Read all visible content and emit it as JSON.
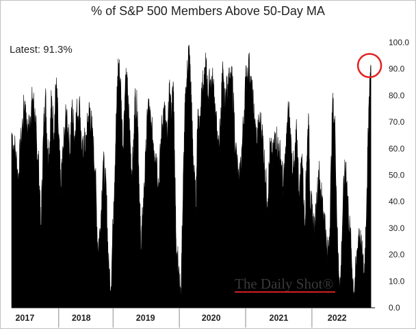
{
  "chart_data": {
    "type": "area",
    "title": "% of S&P 500 Members Above 50-Day MA",
    "annotation": "Latest:  91.3%",
    "latest_value": 91.3,
    "xlabel": "",
    "ylabel": "",
    "ylim": [
      0,
      100
    ],
    "y_ticks": [
      "0.0",
      "10.0",
      "20.0",
      "30.0",
      "40.0",
      "50.0",
      "60.0",
      "70.0",
      "80.0",
      "90.0",
      "100.0"
    ],
    "x_range": [
      2016.92,
      2022.38
    ],
    "year_labels": [
      {
        "label": "2017",
        "center": 2017.12
      },
      {
        "label": "2018",
        "center": 2017.97
      },
      {
        "label": "2019",
        "center": 2018.94
      },
      {
        "label": "2020",
        "center": 2019.93
      },
      {
        "label": "2021",
        "center": 2020.95
      },
      {
        "label": "2022",
        "center": 2021.83
      }
    ],
    "year_boundaries": [
      2017.63,
      2018.45,
      2019.45,
      2020.45,
      2021.45
    ],
    "series": [
      {
        "fill": "#000000",
        "x": [
          2016.92,
          2016.98,
          2017.02,
          2017.06,
          2017.12,
          2017.15,
          2017.2,
          2017.24,
          2017.28,
          2017.3,
          2017.33,
          2017.36,
          2017.4,
          2017.43,
          2017.46,
          2017.49,
          2017.52,
          2017.56,
          2017.59,
          2017.62,
          2017.66,
          2017.7,
          2017.75,
          2017.8,
          2017.83,
          2017.87,
          2017.9,
          2017.95,
          2017.98,
          2018.01,
          2018.04,
          2018.07,
          2018.1,
          2018.14,
          2018.18,
          2018.22,
          2018.26,
          2018.3,
          2018.35,
          2018.38,
          2018.42,
          2018.46,
          2018.5,
          2018.53,
          2018.56,
          2018.6,
          2018.64,
          2018.67,
          2018.7,
          2018.73,
          2018.76,
          2018.78,
          2018.82,
          2018.85,
          2018.87,
          2018.9,
          2018.94,
          2018.98,
          2019.02,
          2019.06,
          2019.1,
          2019.14,
          2019.18,
          2019.22,
          2019.27,
          2019.3,
          2019.33,
          2019.36,
          2019.38,
          2019.4,
          2019.43,
          2019.47,
          2019.5,
          2019.53,
          2019.56,
          2019.59,
          2019.62,
          2019.64,
          2019.67,
          2019.7,
          2019.73,
          2019.75,
          2019.79,
          2019.82,
          2019.85,
          2019.88,
          2019.92,
          2019.96,
          2020.0,
          2020.03,
          2020.07,
          2020.1,
          2020.13,
          2020.16,
          2020.19,
          2020.22,
          2020.25,
          2020.3,
          2020.35,
          2020.4,
          2020.45,
          2020.5,
          2020.53,
          2020.56,
          2020.58,
          2020.62,
          2020.66,
          2020.7,
          2020.74,
          2020.78,
          2020.82,
          2020.86,
          2020.9,
          2020.94,
          2020.98,
          2021.02,
          2021.06,
          2021.1,
          2021.14,
          2021.18,
          2021.22,
          2021.26,
          2021.3,
          2021.34,
          2021.37,
          2021.4,
          2021.42,
          2021.46,
          2021.5,
          2021.55,
          2021.6,
          2021.64,
          2021.68,
          2021.72,
          2021.76,
          2021.8,
          2021.84,
          2021.88,
          2021.92,
          2021.96,
          2022.0,
          2022.04,
          2022.08,
          2022.12,
          2022.16,
          2022.2,
          2022.24,
          2022.28,
          2022.31,
          2022.34
        ],
        "y": [
          66,
          58,
          48,
          63,
          78,
          65,
          72,
          79,
          70,
          60,
          52,
          28,
          65,
          80,
          60,
          58,
          78,
          66,
          84,
          70,
          45,
          60,
          74,
          58,
          75,
          64,
          73,
          75,
          56,
          62,
          60,
          70,
          75,
          64,
          52,
          22,
          30,
          55,
          42,
          15,
          8,
          40,
          72,
          92,
          85,
          60,
          88,
          80,
          66,
          50,
          58,
          78,
          74,
          40,
          22,
          35,
          55,
          77,
          68,
          62,
          58,
          45,
          66,
          75,
          62,
          80,
          72,
          84,
          55,
          26,
          16,
          2,
          35,
          70,
          84,
          98,
          85,
          70,
          50,
          38,
          75,
          66,
          85,
          80,
          92,
          80,
          86,
          84,
          72,
          58,
          68,
          88,
          76,
          80,
          86,
          83,
          85,
          60,
          45,
          62,
          85,
          92,
          82,
          78,
          70,
          62,
          70,
          66,
          52,
          40,
          60,
          55,
          66,
          60,
          56,
          45,
          60,
          75,
          58,
          50,
          66,
          42,
          58,
          30,
          55,
          72,
          44,
          32,
          30,
          52,
          40,
          35,
          18,
          30,
          76,
          66,
          20,
          8,
          40,
          55,
          36,
          22,
          6,
          15,
          30,
          20,
          12,
          45,
          77,
          91.3
        ]
      }
    ],
    "watermark": "The Daily Shot®"
  }
}
